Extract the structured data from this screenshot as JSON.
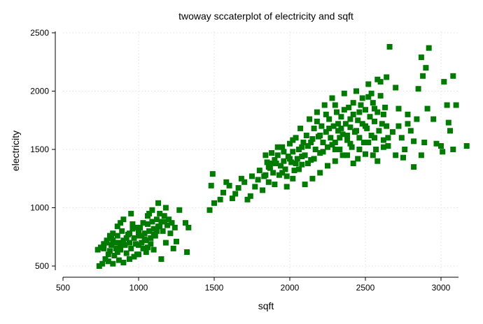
{
  "chart_data": {
    "type": "scatter",
    "title": "twoway sccaterplot of electricity and sqft",
    "xlabel": "sqft",
    "ylabel": "electricity",
    "xlim": [
      500,
      3200
    ],
    "ylim": [
      440,
      2500
    ],
    "xticks": [
      500,
      1000,
      1500,
      2000,
      2500,
      3000
    ],
    "yticks": [
      500,
      1000,
      1500,
      2000,
      2500
    ],
    "grid": true,
    "marker": "square",
    "color": "#007a00",
    "series": [
      {
        "points": [
          [
            760,
            520
          ],
          [
            740,
            500
          ],
          [
            780,
            560
          ],
          [
            800,
            600
          ],
          [
            770,
            650
          ],
          [
            790,
            700
          ],
          [
            810,
            630
          ],
          [
            830,
            720
          ],
          [
            820,
            680
          ],
          [
            850,
            650
          ],
          [
            840,
            590
          ],
          [
            860,
            760
          ],
          [
            870,
            700
          ],
          [
            880,
            640
          ],
          [
            890,
            800
          ],
          [
            900,
            720
          ],
          [
            910,
            680
          ],
          [
            920,
            610
          ],
          [
            930,
            770
          ],
          [
            940,
            700
          ],
          [
            950,
            650
          ],
          [
            960,
            820
          ],
          [
            970,
            740
          ],
          [
            980,
            690
          ],
          [
            990,
            600
          ],
          [
            1000,
            760
          ],
          [
            1010,
            830
          ],
          [
            1020,
            700
          ],
          [
            1030,
            650
          ],
          [
            1040,
            780
          ],
          [
            1050,
            720
          ],
          [
            1060,
            860
          ],
          [
            1070,
            800
          ],
          [
            1080,
            740
          ],
          [
            1090,
            880
          ],
          [
            1100,
            820
          ],
          [
            1110,
            760
          ],
          [
            1120,
            900
          ],
          [
            1130,
            840
          ],
          [
            1140,
            950
          ],
          [
            1150,
            880
          ],
          [
            1160,
            800
          ],
          [
            1170,
            930
          ],
          [
            1180,
            1000
          ],
          [
            1200,
            900
          ],
          [
            1220,
            870
          ],
          [
            1240,
            830
          ],
          [
            1270,
            980
          ],
          [
            1320,
            620
          ],
          [
            1330,
            830
          ],
          [
            1310,
            870
          ],
          [
            1090,
            980
          ],
          [
            1130,
            1040
          ],
          [
            1060,
            930
          ],
          [
            950,
            950
          ],
          [
            900,
            900
          ],
          [
            880,
            870
          ],
          [
            860,
            840
          ],
          [
            830,
            780
          ],
          [
            810,
            760
          ],
          [
            790,
            720
          ],
          [
            770,
            690
          ],
          [
            750,
            660
          ],
          [
            730,
            640
          ],
          [
            800,
            540
          ],
          [
            830,
            520
          ],
          [
            870,
            550
          ],
          [
            900,
            530
          ],
          [
            940,
            560
          ],
          [
            970,
            580
          ],
          [
            1000,
            600
          ],
          [
            1050,
            620
          ],
          [
            1100,
            640
          ],
          [
            1150,
            560
          ],
          [
            1180,
            700
          ],
          [
            1250,
            710
          ],
          [
            1230,
            650
          ],
          [
            1210,
            780
          ],
          [
            1190,
            850
          ],
          [
            1170,
            880
          ],
          [
            1140,
            840
          ],
          [
            1120,
            800
          ],
          [
            1100,
            770
          ],
          [
            1080,
            690
          ],
          [
            1060,
            660
          ],
          [
            1040,
            730
          ],
          [
            1020,
            760
          ],
          [
            1000,
            800
          ],
          [
            980,
            830
          ],
          [
            960,
            860
          ],
          [
            940,
            780
          ],
          [
            920,
            740
          ],
          [
            900,
            700
          ],
          [
            880,
            660
          ],
          [
            860,
            620
          ],
          [
            840,
            700
          ],
          [
            820,
            740
          ],
          [
            1000,
            680
          ],
          [
            1030,
            870
          ],
          [
            1070,
            950
          ],
          [
            1470,
            980
          ],
          [
            1500,
            1040
          ],
          [
            1480,
            1190
          ],
          [
            1490,
            1290
          ],
          [
            1540,
            1070
          ],
          [
            1560,
            1130
          ],
          [
            1580,
            1220
          ],
          [
            1600,
            1190
          ],
          [
            1620,
            1080
          ],
          [
            1640,
            1120
          ],
          [
            1660,
            1170
          ],
          [
            1680,
            1250
          ],
          [
            1700,
            1220
          ],
          [
            1720,
            1070
          ],
          [
            1740,
            1100
          ],
          [
            1750,
            1270
          ],
          [
            1770,
            1180
          ],
          [
            1790,
            1240
          ],
          [
            1800,
            1320
          ],
          [
            1820,
            1150
          ],
          [
            1840,
            1280
          ],
          [
            1850,
            1390
          ],
          [
            1860,
            1220
          ],
          [
            1870,
            1340
          ],
          [
            1880,
            1470
          ],
          [
            1890,
            1300
          ],
          [
            1900,
            1200
          ],
          [
            1910,
            1380
          ],
          [
            1920,
            1450
          ],
          [
            1930,
            1280
          ],
          [
            1940,
            1360
          ],
          [
            1950,
            1520
          ],
          [
            1960,
            1400
          ],
          [
            1970,
            1330
          ],
          [
            1980,
            1270
          ],
          [
            1990,
            1440
          ],
          [
            2000,
            1550
          ],
          [
            2010,
            1390
          ],
          [
            2020,
            1480
          ],
          [
            2030,
            1320
          ],
          [
            2040,
            1600
          ],
          [
            2050,
            1420
          ],
          [
            2060,
            1500
          ],
          [
            2070,
            1680
          ],
          [
            2080,
            1370
          ],
          [
            2090,
            1560
          ],
          [
            2100,
            1450
          ],
          [
            2110,
            1620
          ],
          [
            2120,
            1530
          ],
          [
            2130,
            1760
          ],
          [
            2140,
            1410
          ],
          [
            2150,
            1590
          ],
          [
            2160,
            1680
          ],
          [
            2170,
            1500
          ],
          [
            2180,
            1820
          ],
          [
            2190,
            1610
          ],
          [
            2200,
            1470
          ],
          [
            2210,
            1700
          ],
          [
            2220,
            1560
          ],
          [
            2230,
            1880
          ],
          [
            2240,
            1650
          ],
          [
            2250,
            1520
          ],
          [
            2260,
            1760
          ],
          [
            2270,
            1600
          ],
          [
            2280,
            1940
          ],
          [
            2290,
            1700
          ],
          [
            2300,
            1560
          ],
          [
            2310,
            1820
          ],
          [
            2320,
            1660
          ],
          [
            2330,
            1500
          ],
          [
            2340,
            1780
          ],
          [
            2350,
            1630
          ],
          [
            2360,
            1980
          ],
          [
            2370,
            1720
          ],
          [
            2380,
            1580
          ],
          [
            2390,
            1860
          ],
          [
            2400,
            1690
          ],
          [
            2410,
            1520
          ],
          [
            2420,
            1800
          ],
          [
            2430,
            1650
          ],
          [
            2440,
            2000
          ],
          [
            2450,
            1750
          ],
          [
            2460,
            1600
          ],
          [
            2470,
            1880
          ],
          [
            2480,
            1720
          ],
          [
            2490,
            1560
          ],
          [
            2500,
            1840
          ],
          [
            2510,
            1680
          ],
          [
            2520,
            1950
          ],
          [
            2530,
            1780
          ],
          [
            2540,
            1620
          ],
          [
            2550,
            1900
          ],
          [
            2560,
            1740
          ],
          [
            2570,
            1500
          ],
          [
            2580,
            1820
          ],
          [
            2590,
            1660
          ],
          [
            2600,
            1960
          ],
          [
            2610,
            1720
          ],
          [
            2620,
            1580
          ],
          [
            2630,
            1860
          ],
          [
            2640,
            1700
          ],
          [
            2650,
            1600
          ],
          [
            2660,
            2380
          ],
          [
            2700,
            2030
          ],
          [
            2720,
            1850
          ],
          [
            2740,
            1600
          ],
          [
            2760,
            1500
          ],
          [
            2780,
            1720
          ],
          [
            2800,
            1660
          ],
          [
            2820,
            1570
          ],
          [
            2850,
            2020
          ],
          [
            2870,
            2290
          ],
          [
            2880,
            2130
          ],
          [
            2900,
            2200
          ],
          [
            2920,
            2370
          ],
          [
            2910,
            1850
          ],
          [
            2890,
            1560
          ],
          [
            2870,
            1450
          ],
          [
            2950,
            1760
          ],
          [
            2970,
            1550
          ],
          [
            3000,
            1530
          ],
          [
            3020,
            2080
          ],
          [
            3050,
            1730
          ],
          [
            3040,
            1880
          ],
          [
            3080,
            2130
          ],
          [
            3100,
            1880
          ],
          [
            3060,
            1660
          ],
          [
            3080,
            1500
          ],
          [
            3170,
            1530
          ],
          [
            3010,
            1480
          ],
          [
            2750,
            1430
          ],
          [
            2820,
            1350
          ],
          [
            2700,
            1450
          ],
          [
            2650,
            1530
          ],
          [
            2580,
            1400
          ],
          [
            2500,
            1460
          ],
          [
            2420,
            1380
          ],
          [
            2380,
            1450
          ],
          [
            2300,
            1400
          ],
          [
            2250,
            1360
          ],
          [
            2200,
            1300
          ],
          [
            2150,
            1250
          ],
          [
            2100,
            1200
          ],
          [
            2060,
            1330
          ],
          [
            2020,
            1250
          ],
          [
            1980,
            1180
          ],
          [
            1950,
            1300
          ],
          [
            1900,
            1410
          ],
          [
            1860,
            1350
          ],
          [
            1830,
            1270
          ],
          [
            2400,
            1550
          ],
          [
            2460,
            1500
          ],
          [
            2520,
            1560
          ],
          [
            2560,
            1600
          ],
          [
            2330,
            1600
          ],
          [
            2280,
            1540
          ],
          [
            2220,
            1480
          ],
          [
            2160,
            1420
          ],
          [
            2120,
            1380
          ],
          [
            2080,
            1440
          ],
          [
            2040,
            1380
          ],
          [
            2000,
            1420
          ],
          [
            1960,
            1480
          ],
          [
            1920,
            1520
          ],
          [
            1880,
            1380
          ],
          [
            1840,
            1450
          ],
          [
            2300,
            1500
          ],
          [
            2350,
            1450
          ],
          [
            2450,
            1420
          ],
          [
            2550,
            1450
          ],
          [
            2620,
            1520
          ],
          [
            2680,
            1650
          ],
          [
            2720,
            1700
          ],
          [
            2780,
            1800
          ],
          [
            2840,
            1760
          ],
          [
            2620,
            1800
          ],
          [
            2560,
            1850
          ],
          [
            2500,
            1700
          ],
          [
            2440,
            1660
          ],
          [
            2380,
            1620
          ],
          [
            2320,
            1720
          ],
          [
            2260,
            1680
          ],
          [
            2200,
            1620
          ],
          [
            2140,
            1560
          ],
          [
            2080,
            1520
          ],
          [
            2020,
            1580
          ],
          [
            2180,
            1740
          ],
          [
            2240,
            1800
          ],
          [
            2300,
            1880
          ],
          [
            2360,
            1840
          ],
          [
            2420,
            1900
          ],
          [
            2480,
            1940
          ],
          [
            2540,
            1980
          ],
          [
            2600,
            2080
          ],
          [
            2640,
            2120
          ],
          [
            2580,
            2100
          ],
          [
            2520,
            2060
          ],
          [
            2460,
            1820
          ],
          [
            2400,
            1760
          ],
          [
            2340,
            1680
          ]
        ]
      }
    ]
  }
}
